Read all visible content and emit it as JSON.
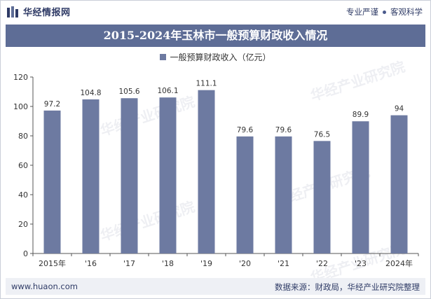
{
  "header": {
    "brand_name": "华经情报网",
    "tagline_left": "专业严谨",
    "tagline_right": "客观科学"
  },
  "title": "2015-2024年玉林市一般预算财政收入情况",
  "legend": {
    "label": "一般预算财政收入（亿元）",
    "color": "#6d7aa1"
  },
  "footer": {
    "website": "www.huaon.com",
    "source": "数据来源：财政局，华经产业研究院整理"
  },
  "watermark": "华经产业研究院",
  "chart_data": {
    "type": "bar",
    "title": "2015-2024年玉林市一般预算财政收入情况",
    "categories": [
      "2015年",
      "'16",
      "'17",
      "'18",
      "'19",
      "'20",
      "'21",
      "'22",
      "'23",
      "2024年"
    ],
    "series": [
      {
        "name": "一般预算财政收入（亿元）",
        "values": [
          97.2,
          104.8,
          105.6,
          106.1,
          111.1,
          79.6,
          79.6,
          76.5,
          89.9,
          94
        ],
        "labels": [
          "97.2",
          "104.8",
          "105.6",
          "106.1",
          "111.1",
          "79.6",
          "79.6",
          "76.5",
          "89.9",
          "94"
        ]
      }
    ],
    "yticks": [
      0,
      20,
      40,
      60,
      80,
      100,
      120
    ],
    "ylim": [
      0,
      120
    ],
    "xlabel": "",
    "ylabel": "",
    "bar_color": "#6d7aa1",
    "grid": false
  }
}
